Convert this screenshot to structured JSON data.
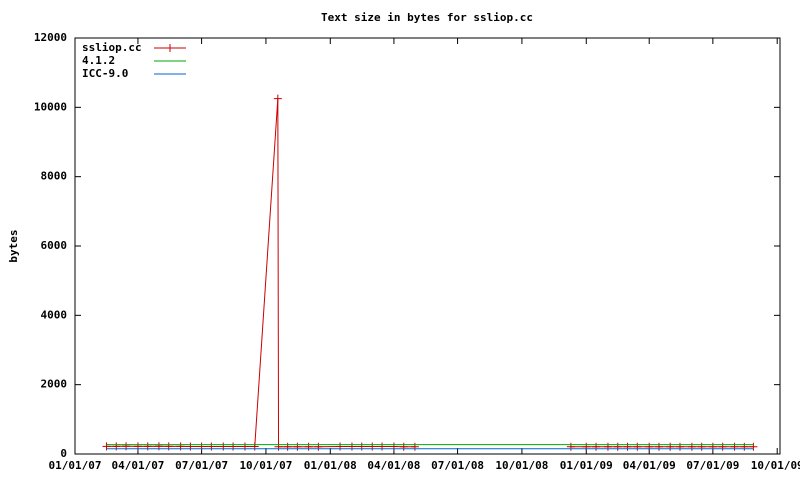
{
  "chart_data": {
    "type": "line",
    "title": "Text size in bytes for ssliop.cc",
    "ylabel": "bytes",
    "xlim": [
      "2007-01-01",
      "2009-10-05"
    ],
    "xticks": [
      {
        "value": "2007-01-01",
        "label": "01/01/07"
      },
      {
        "value": "2007-04-01",
        "label": "04/01/07"
      },
      {
        "value": "2007-07-01",
        "label": "07/01/07"
      },
      {
        "value": "2007-10-01",
        "label": "10/01/07"
      },
      {
        "value": "2008-01-01",
        "label": "01/01/08"
      },
      {
        "value": "2008-04-01",
        "label": "04/01/08"
      },
      {
        "value": "2008-07-01",
        "label": "07/01/08"
      },
      {
        "value": "2008-10-01",
        "label": "10/01/08"
      },
      {
        "value": "2009-01-01",
        "label": "01/01/09"
      },
      {
        "value": "2009-04-01",
        "label": "04/01/09"
      },
      {
        "value": "2009-07-01",
        "label": "07/01/09"
      },
      {
        "value": "2009-10-01",
        "label": "10/01/09"
      }
    ],
    "ylim": [
      0,
      12000
    ],
    "yticks": [
      0,
      2000,
      4000,
      6000,
      8000,
      10000,
      12000
    ],
    "grid": false,
    "legend": "top-left",
    "series": [
      {
        "name": "ssliop.cc",
        "color": "#cc0000",
        "markers": true,
        "x": [
          "2007-02-15",
          "2007-03-01",
          "2007-03-15",
          "2007-04-01",
          "2007-04-15",
          "2007-05-01",
          "2007-05-15",
          "2007-06-01",
          "2007-06-15",
          "2007-07-01",
          "2007-07-15",
          "2007-08-01",
          "2007-08-15",
          "2007-09-01",
          "2007-09-15",
          "2007-10-18",
          "2007-10-19",
          "2007-11-01",
          "2007-11-15",
          "2007-12-01",
          "2007-12-15",
          "2008-01-15",
          "2008-02-01",
          "2008-02-15",
          "2008-03-01",
          "2008-03-15",
          "2008-04-01",
          "2008-04-15",
          "2008-05-01",
          "2008-08-01",
          "2008-12-10",
          "2009-01-01",
          "2009-01-15",
          "2009-02-01",
          "2009-02-15",
          "2009-03-01",
          "2009-03-15",
          "2009-04-01",
          "2009-04-15",
          "2009-05-01",
          "2009-05-15",
          "2009-06-01",
          "2009-06-15",
          "2009-07-01",
          "2009-07-15",
          "2009-08-01",
          "2009-08-15",
          "2009-08-28"
        ],
        "values": [
          220,
          220,
          225,
          220,
          220,
          225,
          220,
          220,
          215,
          215,
          215,
          215,
          215,
          215,
          215,
          10250,
          210,
          210,
          210,
          210,
          210,
          215,
          215,
          215,
          215,
          215,
          215,
          210,
          210,
          null,
          210,
          210,
          210,
          210,
          210,
          210,
          210,
          210,
          210,
          210,
          210,
          210,
          210,
          210,
          210,
          210,
          210,
          210
        ]
      },
      {
        "name": "4.1.2",
        "color": "#00aa00",
        "markers": false,
        "x": [
          "2007-02-15",
          "2009-08-28"
        ],
        "values": [
          270,
          270
        ]
      },
      {
        "name": "ICC-9.0",
        "color": "#0066cc",
        "markers": false,
        "x": [
          "2007-02-15",
          "2009-08-28"
        ],
        "values": [
          150,
          150
        ]
      }
    ]
  }
}
